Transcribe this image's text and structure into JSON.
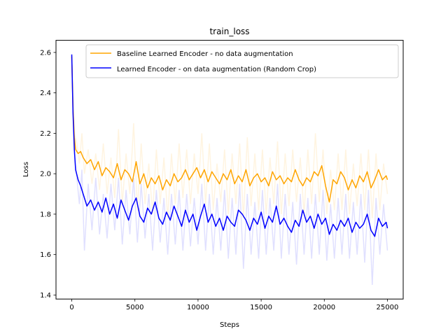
{
  "chart_data": {
    "type": "line",
    "title": "train_loss",
    "xlabel": "Steps",
    "ylabel": "Loss",
    "xlim": [
      -1250,
      26250
    ],
    "ylim": [
      1.38,
      2.66
    ],
    "xticks": [
      0,
      5000,
      10000,
      15000,
      20000,
      25000
    ],
    "yticks": [
      1.4,
      1.6,
      1.8,
      2.0,
      2.2,
      2.4,
      2.6
    ],
    "legend_position": "top-right",
    "grid": false,
    "series": [
      {
        "name": "Baseline Learned Encoder - no data augmentation",
        "color": "#ffa500",
        "x": [
          0,
          100,
          200,
          300,
          500,
          700,
          900,
          1200,
          1500,
          1800,
          2100,
          2400,
          2700,
          3000,
          3300,
          3600,
          3900,
          4200,
          4500,
          4800,
          5100,
          5400,
          5700,
          6000,
          6300,
          6600,
          6900,
          7200,
          7500,
          7800,
          8100,
          8400,
          8700,
          9000,
          9300,
          9600,
          9900,
          10200,
          10500,
          10800,
          11100,
          11400,
          11700,
          12000,
          12300,
          12600,
          12900,
          13200,
          13500,
          13800,
          14100,
          14400,
          14700,
          15000,
          15300,
          15600,
          15900,
          16200,
          16500,
          16800,
          17100,
          17400,
          17700,
          18000,
          18300,
          18600,
          18900,
          19200,
          19500,
          19800,
          20100,
          20400,
          20700,
          21000,
          21300,
          21600,
          21900,
          22200,
          22500,
          22800,
          23100,
          23400,
          23700,
          24000,
          24300,
          24600,
          24900,
          25000
        ],
        "values": [
          2.58,
          2.32,
          2.18,
          2.12,
          2.1,
          2.11,
          2.08,
          2.05,
          2.07,
          2.02,
          2.06,
          1.99,
          2.03,
          2.01,
          1.98,
          2.05,
          1.97,
          2.02,
          2.0,
          1.96,
          2.06,
          1.95,
          2.0,
          1.93,
          1.98,
          1.95,
          1.99,
          1.92,
          1.97,
          1.94,
          2.0,
          1.96,
          1.98,
          2.02,
          1.97,
          2.0,
          2.03,
          1.98,
          2.02,
          1.96,
          2.01,
          1.98,
          1.95,
          2.0,
          1.97,
          2.02,
          1.95,
          1.99,
          1.96,
          2.02,
          1.94,
          1.98,
          2.0,
          1.96,
          1.98,
          1.94,
          2.01,
          1.97,
          1.99,
          1.95,
          1.98,
          1.96,
          2.02,
          1.97,
          1.94,
          1.98,
          1.96,
          2.01,
          1.99,
          2.04,
          1.94,
          1.86,
          1.97,
          1.95,
          2.01,
          1.98,
          1.92,
          1.97,
          1.93,
          1.99,
          1.96,
          2.01,
          1.93,
          1.97,
          2.02,
          1.97,
          1.99,
          1.97
        ]
      },
      {
        "name": "Learned Encoder - on data augmentation (Random Crop)",
        "color": "#0000ff",
        "x": [
          0,
          100,
          200,
          300,
          500,
          700,
          900,
          1200,
          1500,
          1800,
          2100,
          2400,
          2700,
          3000,
          3300,
          3600,
          3900,
          4200,
          4500,
          4800,
          5100,
          5400,
          5700,
          6000,
          6300,
          6600,
          6900,
          7200,
          7500,
          7800,
          8100,
          8400,
          8700,
          9000,
          9300,
          9600,
          9900,
          10200,
          10500,
          10800,
          11100,
          11400,
          11700,
          12000,
          12300,
          12600,
          12900,
          13200,
          13500,
          13800,
          14100,
          14400,
          14700,
          15000,
          15300,
          15600,
          15900,
          16200,
          16500,
          16800,
          17100,
          17400,
          17700,
          18000,
          18300,
          18600,
          18900,
          19200,
          19500,
          19800,
          20100,
          20400,
          20700,
          21000,
          21300,
          21600,
          21900,
          22200,
          22500,
          22800,
          23100,
          23400,
          23700,
          24000,
          24300,
          24600,
          24900,
          25000
        ],
        "values": [
          2.59,
          2.3,
          2.12,
          2.02,
          1.97,
          1.94,
          1.9,
          1.84,
          1.87,
          1.82,
          1.86,
          1.81,
          1.88,
          1.8,
          1.85,
          1.78,
          1.87,
          1.82,
          1.77,
          1.84,
          1.88,
          1.79,
          1.76,
          1.83,
          1.8,
          1.86,
          1.78,
          1.75,
          1.81,
          1.77,
          1.84,
          1.79,
          1.74,
          1.82,
          1.76,
          1.8,
          1.72,
          1.79,
          1.85,
          1.76,
          1.8,
          1.74,
          1.78,
          1.72,
          1.79,
          1.76,
          1.74,
          1.82,
          1.8,
          1.77,
          1.72,
          1.78,
          1.75,
          1.81,
          1.73,
          1.79,
          1.76,
          1.84,
          1.75,
          1.78,
          1.74,
          1.71,
          1.77,
          1.74,
          1.82,
          1.76,
          1.79,
          1.73,
          1.8,
          1.75,
          1.78,
          1.7,
          1.75,
          1.72,
          1.77,
          1.74,
          1.78,
          1.71,
          1.76,
          1.73,
          1.75,
          1.8,
          1.72,
          1.69,
          1.78,
          1.74,
          1.76,
          1.73
        ]
      }
    ],
    "raw_series": [
      {
        "name": "",
        "color": "#ffa500",
        "x": [
          0,
          200,
          400,
          600,
          800,
          1000,
          1300,
          1600,
          1900,
          2200,
          2500,
          2800,
          3100,
          3400,
          3700,
          4000,
          4300,
          4600,
          4900,
          5200,
          5500,
          5800,
          6100,
          6400,
          6700,
          7000,
          7300,
          7600,
          7900,
          8200,
          8500,
          8800,
          9100,
          9400,
          9700,
          10000,
          10300,
          10600,
          10900,
          11200,
          11500,
          11800,
          12100,
          12400,
          12700,
          13000,
          13300,
          13600,
          13900,
          14200,
          14500,
          14800,
          15100,
          15400,
          15700,
          16000,
          16300,
          16600,
          16900,
          17200,
          17500,
          17800,
          18100,
          18400,
          18700,
          19000,
          19300,
          19600,
          19900,
          20200,
          20500,
          20800,
          21100,
          21400,
          21700,
          22000,
          22300,
          22600,
          22900,
          23200,
          23500,
          23800,
          24100,
          24400,
          24700,
          25000
        ],
        "values": [
          2.58,
          2.2,
          2.15,
          2.05,
          2.2,
          2.0,
          2.12,
          1.95,
          2.1,
          1.92,
          2.15,
          1.9,
          2.08,
          1.88,
          2.22,
          1.85,
          2.1,
          1.9,
          2.25,
          1.82,
          2.15,
          1.85,
          2.05,
          1.8,
          2.12,
          1.85,
          2.08,
          1.78,
          2.1,
          1.85,
          2.15,
          1.88,
          2.12,
          1.85,
          2.1,
          1.9,
          2.2,
          1.85,
          2.15,
          1.82,
          2.05,
          1.86,
          2.12,
          1.8,
          2.1,
          1.85,
          2.15,
          1.78,
          2.18,
          1.84,
          2.1,
          1.82,
          2.12,
          1.8,
          2.08,
          1.85,
          2.16,
          1.8,
          2.1,
          1.84,
          2.12,
          1.86,
          2.08,
          1.8,
          2.12,
          1.85,
          2.2,
          1.86,
          2.12,
          1.8,
          2.02,
          1.82,
          2.1,
          1.82,
          2.12,
          1.8,
          2.05,
          1.84,
          2.1,
          1.82,
          2.12,
          1.78,
          2.1,
          1.82,
          2.05,
          1.9
        ]
      },
      {
        "name": "",
        "color": "#0000ff",
        "x": [
          0,
          200,
          400,
          600,
          800,
          1000,
          1300,
          1600,
          1900,
          2200,
          2500,
          2800,
          3100,
          3400,
          3700,
          4000,
          4300,
          4600,
          4900,
          5200,
          5500,
          5800,
          6100,
          6400,
          6700,
          7000,
          7300,
          7600,
          7900,
          8200,
          8500,
          8800,
          9100,
          9400,
          9700,
          10000,
          10300,
          10600,
          10900,
          11200,
          11500,
          11800,
          12100,
          12400,
          12700,
          13000,
          13300,
          13600,
          13900,
          14200,
          14500,
          14800,
          15100,
          15400,
          15700,
          16000,
          16300,
          16600,
          16900,
          17200,
          17500,
          17800,
          18100,
          18400,
          18700,
          19000,
          19300,
          19600,
          19900,
          20200,
          20500,
          20800,
          21100,
          21400,
          21700,
          22000,
          22300,
          22600,
          22900,
          23200,
          23500,
          23800,
          24100,
          24400,
          24700,
          25000
        ],
        "values": [
          2.59,
          2.1,
          1.98,
          1.85,
          2.02,
          1.62,
          1.95,
          1.72,
          1.98,
          1.7,
          1.9,
          1.68,
          1.95,
          1.72,
          1.98,
          1.65,
          1.92,
          1.7,
          1.98,
          1.66,
          1.95,
          1.68,
          1.9,
          1.62,
          1.92,
          1.66,
          1.88,
          1.6,
          1.9,
          1.65,
          1.92,
          1.62,
          1.9,
          1.64,
          1.88,
          1.65,
          1.95,
          1.62,
          1.9,
          1.6,
          1.88,
          1.62,
          1.92,
          1.58,
          1.88,
          1.6,
          1.95,
          1.53,
          1.9,
          1.6,
          1.86,
          1.58,
          1.92,
          1.6,
          1.88,
          1.62,
          1.95,
          1.58,
          1.9,
          1.6,
          1.86,
          1.55,
          1.9,
          1.6,
          1.88,
          1.58,
          1.9,
          1.6,
          1.92,
          1.57,
          1.85,
          1.58,
          1.88,
          1.6,
          1.9,
          1.58,
          1.86,
          1.6,
          1.9,
          1.56,
          1.92,
          1.45,
          1.88,
          1.6,
          1.85,
          1.62
        ]
      }
    ]
  }
}
